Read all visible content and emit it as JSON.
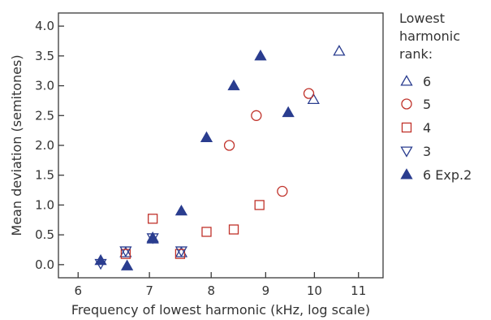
{
  "chart_data": {
    "type": "scatter",
    "xlabel": "Frequency of lowest harmonic (kHz, log scale)",
    "ylabel": "Mean deviation (semitones)",
    "x_scale": "log",
    "xlim": [
      5.75,
      11.6
    ],
    "ylim": [
      -0.22,
      4.22
    ],
    "x_ticks": [
      "6",
      "7",
      "8",
      "9",
      "10",
      "11"
    ],
    "y_ticks": [
      "0.0",
      "0.5",
      "1.0",
      "1.5",
      "2.0",
      "2.5",
      "3.0",
      "3.5",
      "4.0"
    ],
    "grid": false,
    "legend_position": "right",
    "legend_title_lines": [
      "Lowest",
      "harmonic",
      "rank:"
    ],
    "series": [
      {
        "name": "6",
        "marker": "triangle-up-open",
        "color": "#2a3d8f",
        "points": [
          [
            6.65,
            0.2
          ],
          [
            7.05,
            0.45
          ],
          [
            7.5,
            0.2
          ],
          [
            9.98,
            2.77
          ],
          [
            10.55,
            3.58
          ]
        ]
      },
      {
        "name": "5",
        "marker": "circle-open",
        "color": "#c0322a",
        "points": [
          [
            8.32,
            2.0
          ],
          [
            8.82,
            2.5
          ],
          [
            9.33,
            1.23
          ],
          [
            9.88,
            2.87
          ]
        ]
      },
      {
        "name": "4",
        "marker": "square-open",
        "color": "#c0322a",
        "points": [
          [
            6.65,
            0.18
          ],
          [
            7.05,
            0.77
          ],
          [
            7.48,
            0.18
          ],
          [
            7.92,
            0.55
          ],
          [
            8.4,
            0.59
          ],
          [
            8.88,
            1.0
          ]
        ]
      },
      {
        "name": "3",
        "marker": "triangle-down-open",
        "color": "#2a3d8f",
        "points": [
          [
            6.3,
            0.02
          ],
          [
            6.65,
            0.23
          ],
          [
            7.05,
            0.45
          ],
          [
            7.5,
            0.23
          ]
        ]
      },
      {
        "name": "6 Exp.2",
        "marker": "triangle-up-filled",
        "color": "#2a3d8f",
        "points": [
          [
            6.3,
            0.07
          ],
          [
            6.67,
            -0.02
          ],
          [
            7.05,
            0.43
          ],
          [
            7.5,
            0.9
          ],
          [
            7.92,
            2.13
          ],
          [
            8.4,
            3.0
          ],
          [
            8.9,
            3.5
          ],
          [
            9.45,
            2.55
          ]
        ]
      }
    ]
  }
}
